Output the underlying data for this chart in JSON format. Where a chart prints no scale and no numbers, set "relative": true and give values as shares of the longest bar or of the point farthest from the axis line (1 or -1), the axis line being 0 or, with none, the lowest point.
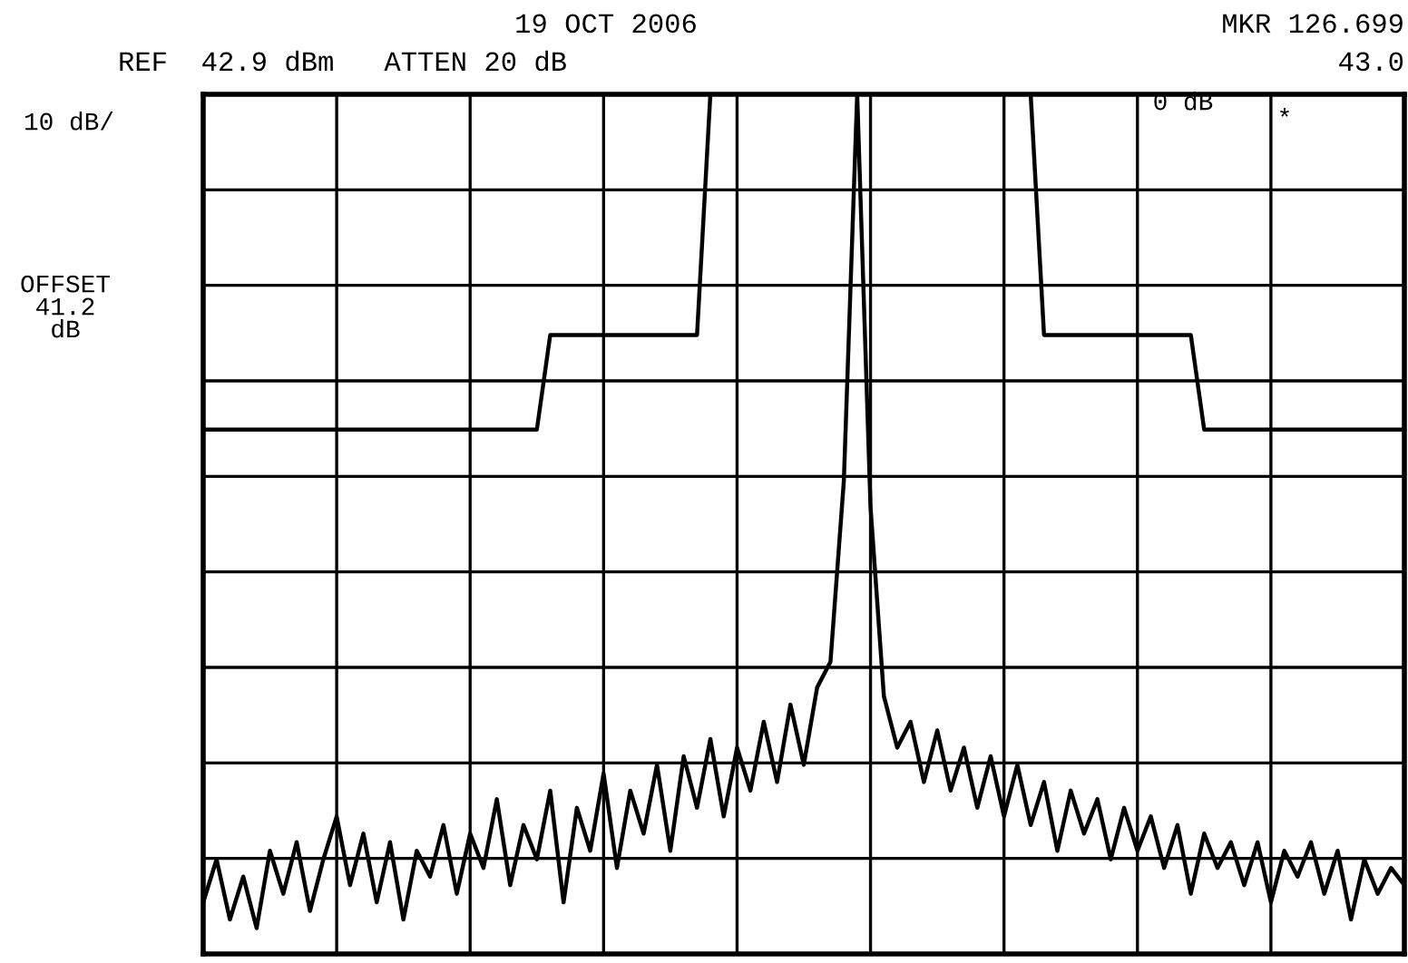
{
  "chart_data": {
    "type": "line",
    "title": "19 OCT 2006",
    "relative": true,
    "annotations": [
      "REF  42.9 dBm   ATTEN 20 dB",
      "MKR 126.699",
      "43.0",
      "0 dB",
      "*",
      "10 dB/",
      "OFFSET\n41.2\ndB"
    ],
    "categories": [
      null,
      null,
      null,
      null,
      null,
      null,
      null,
      null,
      null,
      null,
      null,
      null,
      null,
      null,
      null,
      null,
      null,
      null,
      null,
      null,
      null,
      null,
      null,
      null,
      null,
      null,
      null,
      null,
      null,
      null,
      null,
      null,
      null,
      null,
      null,
      null,
      null,
      null,
      null,
      null,
      null,
      null,
      null,
      null,
      null,
      null,
      null,
      null,
      null,
      null,
      null,
      null,
      null,
      null,
      null,
      null,
      null,
      null,
      null,
      null,
      null,
      null,
      null,
      null,
      null,
      null,
      null,
      null,
      null,
      null,
      null,
      null,
      null,
      null,
      null,
      null,
      null,
      null,
      null,
      null,
      null,
      null,
      null,
      null,
      null,
      null,
      null,
      null,
      null,
      null,
      null
    ],
    "grid": true,
    "marker": "none",
    "line_style": "solid",
    "series": [
      {
        "color": "#000000",
        "values": [
          0.06,
          0.11,
          0.04,
          0.09,
          0.03,
          0.12,
          0.07,
          0.13,
          0.05,
          0.11,
          0.16,
          0.08,
          0.14,
          0.06,
          0.13,
          0.04,
          0.12,
          0.09,
          0.15,
          0.07,
          0.14,
          0.1,
          0.18,
          0.08,
          0.15,
          0.11,
          0.19,
          0.06,
          0.17,
          0.12,
          0.21,
          0.1,
          0.19,
          0.14,
          0.22,
          0.12,
          0.23,
          0.17,
          0.25,
          0.16,
          0.24,
          0.19,
          0.27,
          0.2,
          0.29,
          0.22,
          0.31,
          0.34,
          0.55,
          1.0,
          0.52,
          0.3,
          0.24,
          0.27,
          0.2,
          0.26,
          0.19,
          0.24,
          0.17,
          0.23,
          0.16,
          0.22,
          0.15,
          0.2,
          0.12,
          0.19,
          0.14,
          0.18,
          0.11,
          0.17,
          0.12,
          0.16,
          0.1,
          0.15,
          0.07,
          0.14,
          0.1,
          0.13,
          0.08,
          0.13,
          0.06,
          0.12,
          0.09,
          0.13,
          0.07,
          0.12,
          0.04,
          0.11,
          0.07,
          0.1,
          0.08
        ]
      },
      {
        "color": "#000000",
        "values": [
          0.61,
          0.61,
          0.61,
          0.61,
          0.61,
          0.61,
          0.61,
          0.61,
          0.61,
          0.61,
          0.61,
          0.61,
          0.61,
          0.61,
          0.61,
          0.61,
          0.61,
          0.61,
          0.61,
          0.61,
          0.61,
          0.61,
          0.61,
          0.61,
          0.61,
          0.61,
          0.72,
          0.72,
          0.72,
          0.72,
          0.72,
          0.72,
          0.72,
          0.72,
          0.72,
          0.72,
          0.72,
          0.72,
          1.0,
          null,
          null,
          null,
          null,
          null,
          null,
          null,
          null,
          null,
          null,
          null,
          null,
          null,
          null,
          null,
          null,
          null,
          null,
          null,
          null,
          null,
          null,
          null,
          null,
          null,
          null,
          null,
          null,
          null,
          null,
          null,
          null,
          null,
          null,
          null,
          null,
          null,
          null,
          null,
          null,
          null,
          null,
          null,
          null,
          null,
          null,
          null,
          null,
          null,
          null,
          null,
          null
        ]
      },
      {
        "color": "#000000",
        "values": [
          null,
          null,
          null,
          null,
          null,
          null,
          null,
          null,
          null,
          null,
          null,
          null,
          null,
          null,
          null,
          null,
          null,
          null,
          null,
          null,
          null,
          null,
          null,
          null,
          null,
          null,
          null,
          null,
          null,
          null,
          null,
          null,
          null,
          null,
          null,
          null,
          null,
          null,
          null,
          null,
          null,
          null,
          null,
          null,
          null,
          null,
          null,
          null,
          null,
          null,
          null,
          null,
          null,
          null,
          null,
          null,
          null,
          null,
          null,
          null,
          null,
          null,
          1.0,
          0.72,
          0.72,
          0.72,
          0.72,
          0.72,
          0.72,
          0.72,
          0.72,
          0.72,
          0.72,
          0.72,
          0.72,
          0.61,
          0.61,
          0.61,
          0.61,
          0.61,
          0.61,
          0.61,
          0.61,
          0.61,
          0.61,
          0.61,
          0.61,
          0.61,
          0.61,
          0.61,
          0.61
        ]
      }
    ]
  }
}
